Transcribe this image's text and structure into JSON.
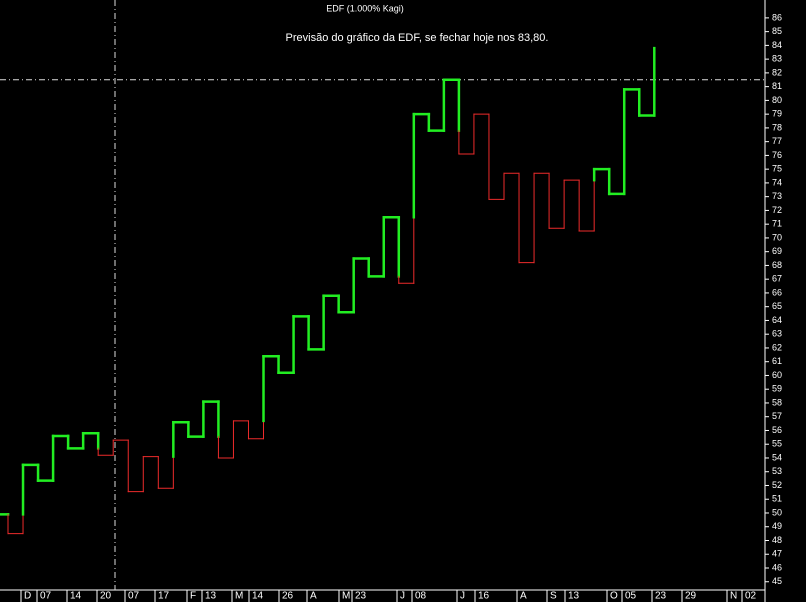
{
  "chart_data": {
    "type": "kagi",
    "title": "EDF (1.000% Kagi)",
    "annotation": "Previsão do gráfico da EDF, se fechar hoje nos 83,80.",
    "values": [
      49.9,
      48.5,
      53.5,
      52.35,
      55.6,
      54.7,
      55.8,
      54.2,
      55.3,
      51.55,
      54.1,
      51.8,
      56.6,
      55.55,
      58.1,
      54.0,
      56.7,
      55.4,
      61.4,
      60.2,
      64.3,
      61.9,
      65.8,
      64.6,
      68.5,
      67.2,
      71.5,
      66.7,
      79.0,
      77.8,
      81.5,
      76.1,
      79.0,
      72.8,
      74.7,
      68.2,
      74.7,
      70.7,
      74.2,
      70.5,
      75.0,
      73.2,
      80.8,
      78.9,
      83.8
    ],
    "yang_color": "#22ee22",
    "yin_color": "#ee2b2b",
    "ylim": [
      44.4,
      87.3
    ],
    "yticks": [
      45,
      46,
      47,
      48,
      49,
      50,
      51,
      52,
      53,
      54,
      55,
      56,
      57,
      58,
      59,
      60,
      61,
      62,
      63,
      64,
      65,
      66,
      67,
      68,
      69,
      70,
      71,
      72,
      73,
      74,
      75,
      76,
      77,
      78,
      79,
      80,
      81,
      82,
      83,
      84,
      85,
      86
    ],
    "x_labels": [
      "D",
      "07",
      "14",
      "20",
      "07",
      "17",
      "F",
      "13",
      "M",
      "14",
      "26",
      "A",
      "M",
      "23",
      "J",
      "08",
      "J",
      "16",
      "A",
      "S",
      "13",
      "O",
      "05",
      "23",
      "29",
      "N",
      "02"
    ],
    "crosshair_y": 81.5
  }
}
